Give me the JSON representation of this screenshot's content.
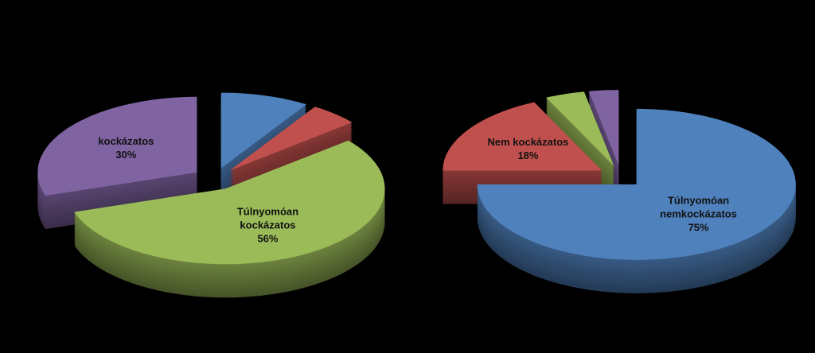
{
  "chart_data": [
    {
      "type": "pie",
      "categories": [
        null,
        null,
        "Túlnyomóan kockázatos",
        "kockázatos"
      ],
      "values": [
        9,
        5,
        56,
        30
      ],
      "value_labels": [
        null,
        null,
        "56%",
        "30%"
      ],
      "colors": [
        "#4f81bd",
        "#c0504d",
        "#9bbb59",
        "#8064a2"
      ]
    },
    {
      "type": "pie",
      "categories": [
        "Túlnyomóan nemkockázatos",
        "Nem kockázatos",
        null,
        null
      ],
      "values": [
        75,
        18,
        4,
        3
      ],
      "value_labels": [
        "75%",
        "18%",
        null,
        null
      ],
      "colors": [
        "#4f81bd",
        "#c0504d",
        "#9bbb59",
        "#8064a2"
      ]
    }
  ]
}
